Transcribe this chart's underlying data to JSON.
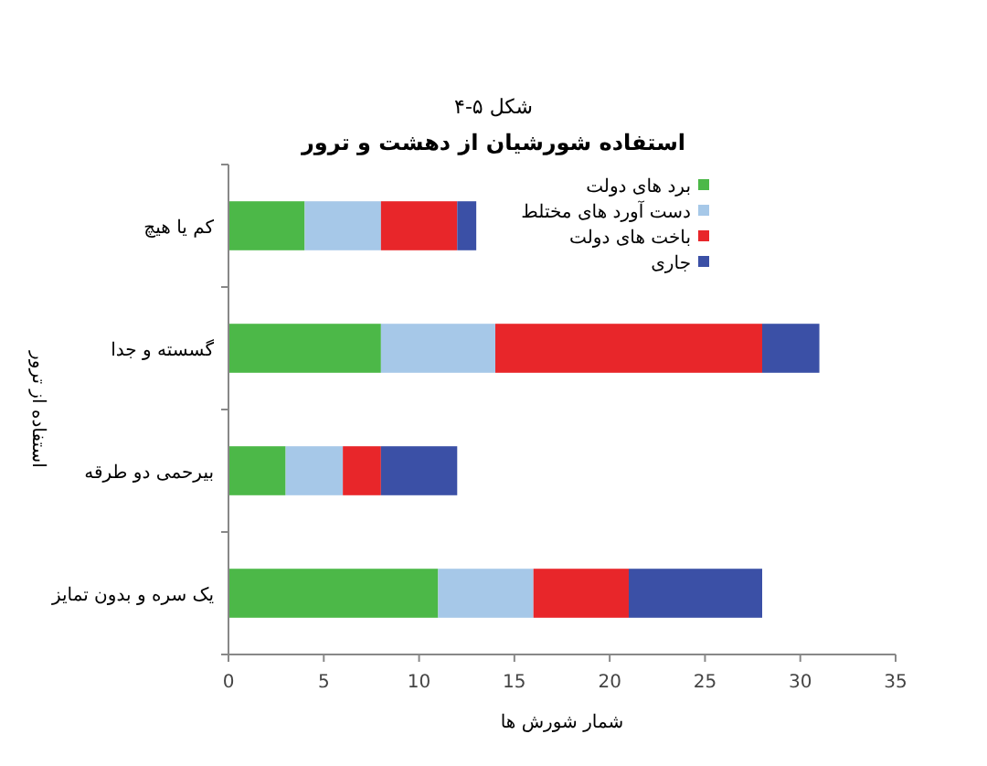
{
  "chart_data": {
    "type": "bar",
    "orientation": "horizontal",
    "stacked": true,
    "title": "شکل ۵-۴",
    "subtitle": "استفاده شورشیان از دهشت و ترور",
    "xlabel": "شمار شورش ها",
    "ylabel": "استفاده از ترور",
    "categories": [
      "کم یا هیچ",
      "گسسته و جدا",
      "بیرحمی دو طرقه",
      "یک سره و بدون تمایز"
    ],
    "series": [
      {
        "name": "برد های دولت",
        "color": "#4cb848",
        "values": [
          4,
          8,
          3,
          11
        ]
      },
      {
        "name": "دست آورد های مختلط",
        "color": "#a6c8e8",
        "values": [
          4,
          6,
          3,
          5
        ]
      },
      {
        "name": "باخت های دولت",
        "color": "#e8262a",
        "values": [
          4,
          14,
          2,
          5
        ]
      },
      {
        "name": "جاری",
        "color": "#3b50a6",
        "values": [
          1,
          3,
          4,
          7
        ]
      }
    ],
    "xlim": [
      0,
      35
    ],
    "xticks": [
      0,
      5,
      10,
      15,
      20,
      25,
      30,
      35
    ],
    "legend": "top right",
    "grid": false
  }
}
